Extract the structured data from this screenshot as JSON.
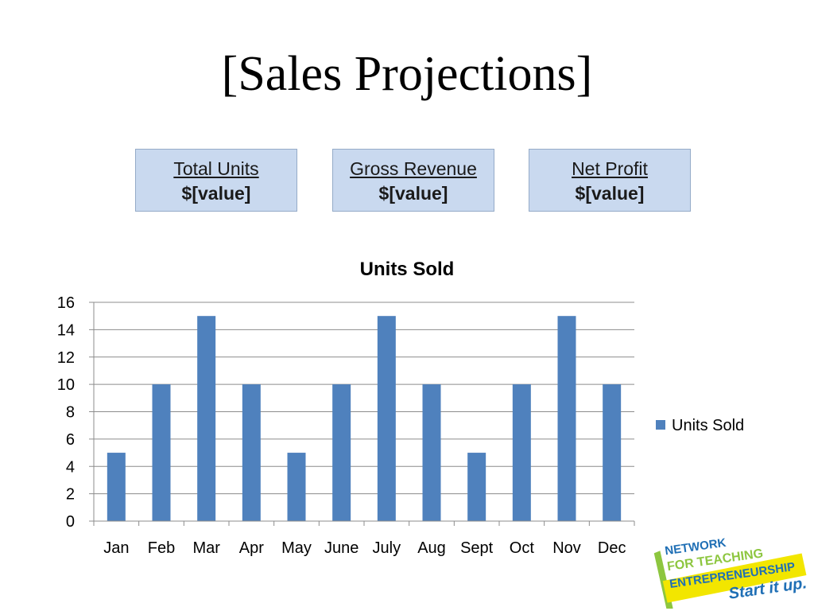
{
  "slide": {
    "title": "[Sales Projections]"
  },
  "stats": [
    {
      "label": "Total Units",
      "value": "$[value]"
    },
    {
      "label": "Gross Revenue",
      "value": "$[value]"
    },
    {
      "label": "Net Profit",
      "value": "$[value]"
    }
  ],
  "chart_data": {
    "type": "bar",
    "title": "Units Sold",
    "categories": [
      "Jan",
      "Feb",
      "Mar",
      "Apr",
      "May",
      "June",
      "July",
      "Aug",
      "Sept",
      "Oct",
      "Nov",
      "Dec"
    ],
    "series": [
      {
        "name": "Units Sold",
        "values": [
          5,
          10,
          15,
          10,
          5,
          10,
          15,
          10,
          5,
          10,
          15,
          10
        ],
        "color": "#4f81bd"
      }
    ],
    "xlabel": "",
    "ylabel": "",
    "ylim": [
      0,
      16
    ],
    "yticks": [
      0,
      2,
      4,
      6,
      8,
      10,
      12,
      14,
      16
    ],
    "grid": true,
    "legend": "right"
  },
  "logo": {
    "lines": [
      "NETWORK",
      "FOR TEACHING",
      "ENTREPRENEURSHIP",
      "Start it up."
    ],
    "colors": {
      "blue": "#1f6fb5",
      "green": "#8dc63f",
      "yellow": "#f2e600"
    }
  }
}
